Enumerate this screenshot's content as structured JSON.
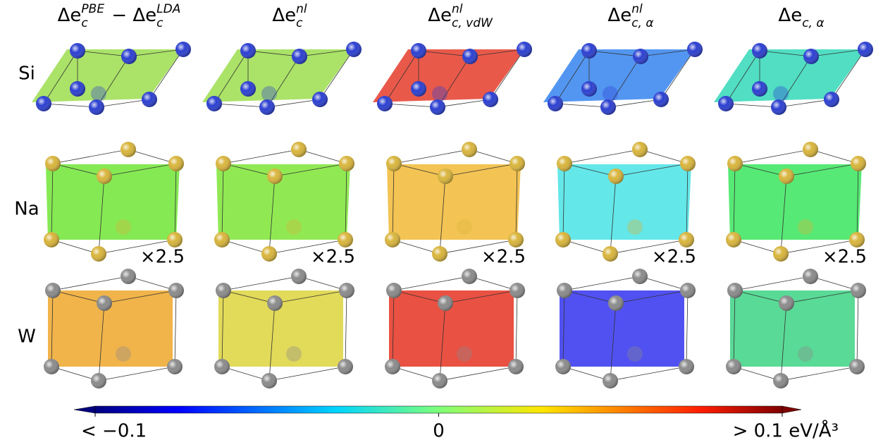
{
  "columns": [
    {
      "header": [
        {
          "text": "Δe"
        },
        {
          "sub": "c",
          "sup": "PBE"
        },
        {
          "text": " − Δe"
        },
        {
          "sub": "c",
          "sup": "LDA"
        }
      ],
      "fills": [
        "#a6e060",
        "#7ee84a",
        "#f0b040"
      ]
    },
    {
      "header": [
        {
          "text": "Δe"
        },
        {
          "sub": "c",
          "sup": "nl"
        }
      ],
      "fills": [
        "#a6e060",
        "#8ae84a",
        "#e0d850"
      ]
    },
    {
      "header": [
        {
          "text": "Δe"
        },
        {
          "sub": "c, vdW",
          "sup": "nl"
        }
      ],
      "fills": [
        "#e85040",
        "#f2c04a",
        "#e84838"
      ]
    },
    {
      "header": [
        {
          "text": "Δe"
        },
        {
          "sub": "c, α",
          "sup": "nl"
        }
      ],
      "fills": [
        "#4a90f0",
        "#5ce6e8",
        "#4848f0"
      ]
    },
    {
      "header": [
        {
          "text": "Δe"
        },
        {
          "sub": "c, α"
        }
      ],
      "fills": [
        "#48dcc0",
        "#4ee86e",
        "#50d890"
      ]
    }
  ],
  "rows": [
    {
      "label": "Si",
      "atom_color": "#2a3ed0"
    },
    {
      "label": "Na",
      "atom_color": "#d8b43a"
    },
    {
      "label": "W",
      "atom_color": "#8a8a8a"
    }
  ],
  "scale_label": "×2.5",
  "colorbar": {
    "lim": [
      -0.1,
      0.1
    ],
    "ticks": [
      {
        "value": -0.1,
        "label": "< −0.1"
      },
      0,
      {
        "value": 0.1,
        "label": "> 0.1 eV/Å³"
      }
    ]
  }
}
